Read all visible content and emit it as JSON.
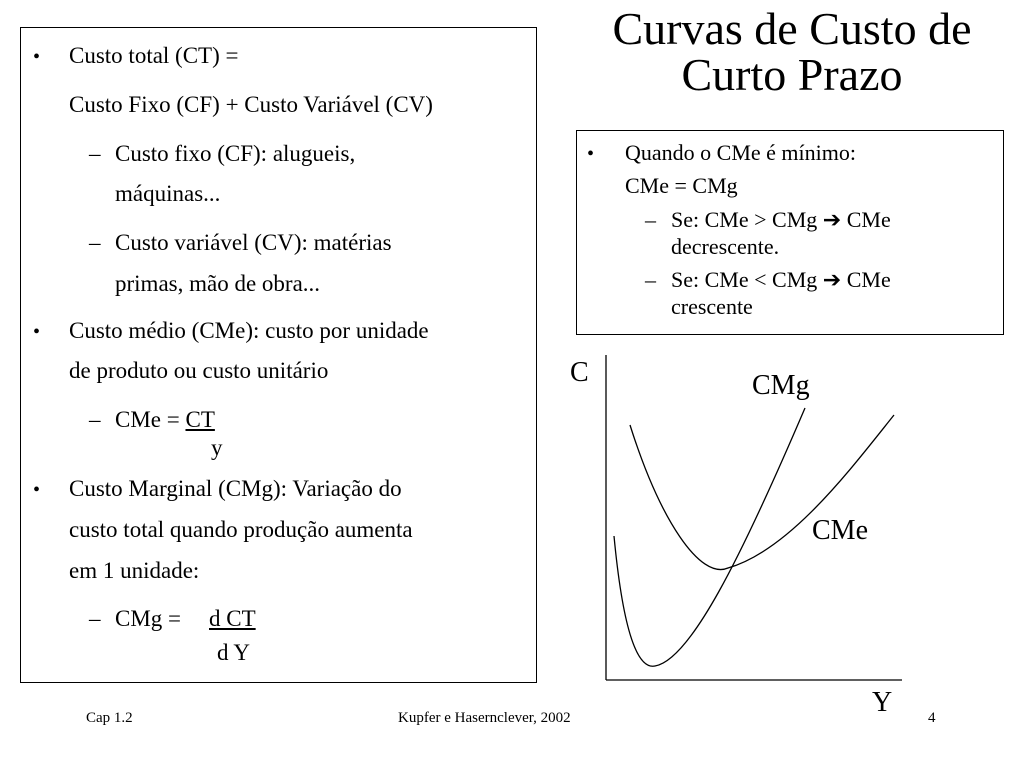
{
  "title": {
    "line1": "Curvas de Custo de",
    "line2": "Curto Prazo"
  },
  "left": {
    "ct_line1": "Custo total (CT) =",
    "ct_line2": "Custo Fixo (CF) + Custo Variável (CV)",
    "cf_line1": "Custo fixo (CF): alugueis,",
    "cf_line2": "máquinas...",
    "cv_line1": "Custo variável (CV): matérias",
    "cv_line2": "primas, mão de obra...",
    "cme_line1": "Custo médio (CMe): custo por unidade",
    "cme_line2": "de produto ou custo unitário",
    "cme_formula_prefix": "CMe = ",
    "cme_formula_num": "CT",
    "cme_formula_den": "y",
    "cmg_line1": "Custo Marginal (CMg): Variação do",
    "cmg_line2": "custo total quando produção aumenta",
    "cmg_line3": "em 1 unidade:",
    "cmg_formula_prefix": "CMg = ",
    "cmg_formula_num": "d CT",
    "cmg_formula_den": "d Y"
  },
  "right": {
    "b1_line1": "Quando o CMe é mínimo:",
    "b1_line2": "CMe = CMg",
    "s1_text": "Se: CMe > CMg",
    "s1_result": " CMe",
    "s1_line2": "decrescente.",
    "s2_text": "Se: CMe < CMg",
    "s2_result": " CMe",
    "s2_line2": "crescente"
  },
  "graph": {
    "y_axis_label": "C",
    "x_axis_label": "Y",
    "cmg_label": "CMg",
    "cme_label": "CMe"
  },
  "footer": {
    "left": "Cap 1.2",
    "center": "Kupfer e Hasernclever, 2002",
    "page": "4"
  },
  "glyphs": {
    "bullet": "•",
    "dash": "–",
    "arrow": "➔"
  }
}
